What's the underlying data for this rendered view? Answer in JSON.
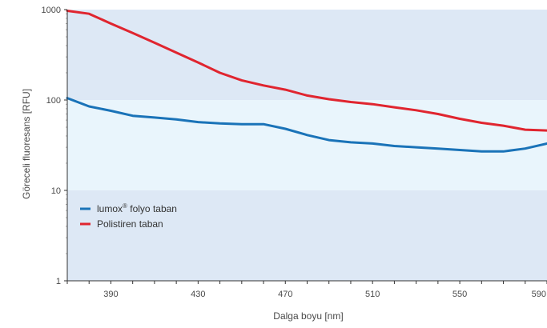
{
  "chart_data": {
    "type": "line",
    "title": "",
    "xlabel": "Dalga boyu [nm]",
    "ylabel": "Göreceli fluoresans [RFU]",
    "y_scale": "log",
    "xlim": [
      370,
      590
    ],
    "ylim": [
      1,
      1000
    ],
    "x_ticks": [
      390,
      430,
      470,
      510,
      550,
      590
    ],
    "x_tick_labels": [
      "390",
      "430",
      "470",
      "510",
      "550",
      "590"
    ],
    "y_ticks": [
      1,
      10,
      100,
      1000
    ],
    "y_tick_labels": [
      "1",
      "10",
      "100",
      "1000"
    ],
    "grid": false,
    "background_bands": [
      {
        "from": 1,
        "to": 10,
        "color": "#dde8f5"
      },
      {
        "from": 10,
        "to": 100,
        "color": "#e9f5fc"
      },
      {
        "from": 100,
        "to": 1000,
        "color": "#dde8f5"
      }
    ],
    "legend": {
      "placement": "lower-left",
      "entries": [
        {
          "name": "lumox",
          "sup": "®",
          "suffix": " folyo taban",
          "color": "#1a73b8"
        },
        {
          "name": "Polistiren taban",
          "sup": "",
          "suffix": "",
          "color": "#e0252f"
        }
      ]
    },
    "series": [
      {
        "name": "lumox® folyo taban",
        "color": "#1a73b8",
        "x": [
          370,
          380,
          390,
          400,
          410,
          420,
          430,
          440,
          450,
          460,
          470,
          480,
          490,
          500,
          510,
          520,
          530,
          540,
          550,
          560,
          570,
          580,
          590
        ],
        "y": [
          105,
          85,
          76,
          67,
          64,
          61,
          57,
          55,
          54,
          54,
          48,
          41,
          36,
          34,
          33,
          31,
          30,
          29,
          28,
          27,
          27,
          29,
          33
        ]
      },
      {
        "name": "Polistiren taban",
        "color": "#e0252f",
        "x": [
          370,
          380,
          390,
          400,
          410,
          420,
          430,
          440,
          450,
          460,
          470,
          480,
          490,
          500,
          510,
          520,
          530,
          540,
          550,
          560,
          570,
          580,
          590
        ],
        "y": [
          970,
          900,
          700,
          550,
          430,
          335,
          260,
          200,
          165,
          145,
          130,
          112,
          102,
          95,
          90,
          83,
          77,
          70,
          62,
          56,
          52,
          47,
          46
        ]
      }
    ]
  }
}
